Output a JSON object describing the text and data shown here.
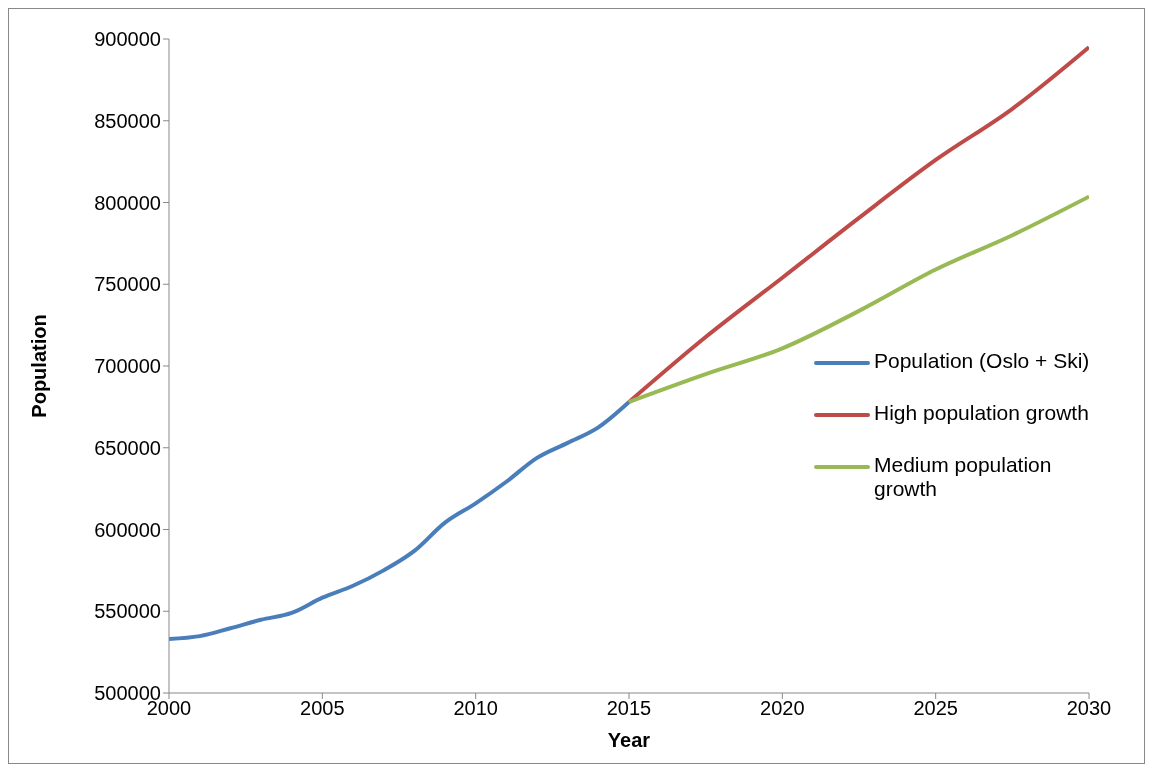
{
  "chart_data": {
    "type": "line",
    "xlabel": "Year",
    "ylabel": "Population",
    "xlim": [
      2000,
      2030
    ],
    "xticks": [
      2000,
      2005,
      2010,
      2015,
      2020,
      2025,
      2030
    ],
    "ylim": [
      500000,
      900000
    ],
    "yticks": [
      500000,
      550000,
      600000,
      650000,
      700000,
      750000,
      800000,
      850000,
      900000
    ],
    "grid": false,
    "legend": "right",
    "marker": "none",
    "line_style": "solid",
    "series": [
      {
        "name": "Population (Oslo + Ski)",
        "color": "#4a7ebb",
        "x": [
          2000,
          2001,
          2002,
          2003,
          2004,
          2005,
          2006,
          2007,
          2008,
          2009,
          2010,
          2011,
          2012,
          2013,
          2014,
          2015
        ],
        "values": [
          533000,
          534800,
          539600,
          544800,
          549000,
          558300,
          565600,
          575000,
          586900,
          604200,
          616000,
          629200,
          643800,
          653000,
          662500,
          678000
        ]
      },
      {
        "name": "High population growth",
        "color": "#be4b48",
        "x": [
          2015,
          2017.5,
          2020,
          2022.5,
          2025,
          2027.5,
          2030
        ],
        "values": [
          678000,
          717700,
          754000,
          790600,
          826000,
          857300,
          895000
        ]
      },
      {
        "name": "Medium population growth",
        "color": "#98b954",
        "x": [
          2015,
          2017.5,
          2020,
          2022.5,
          2025,
          2027.5,
          2030
        ],
        "values": [
          678000,
          695000,
          710800,
          733700,
          759000,
          780000,
          803600
        ]
      }
    ]
  }
}
